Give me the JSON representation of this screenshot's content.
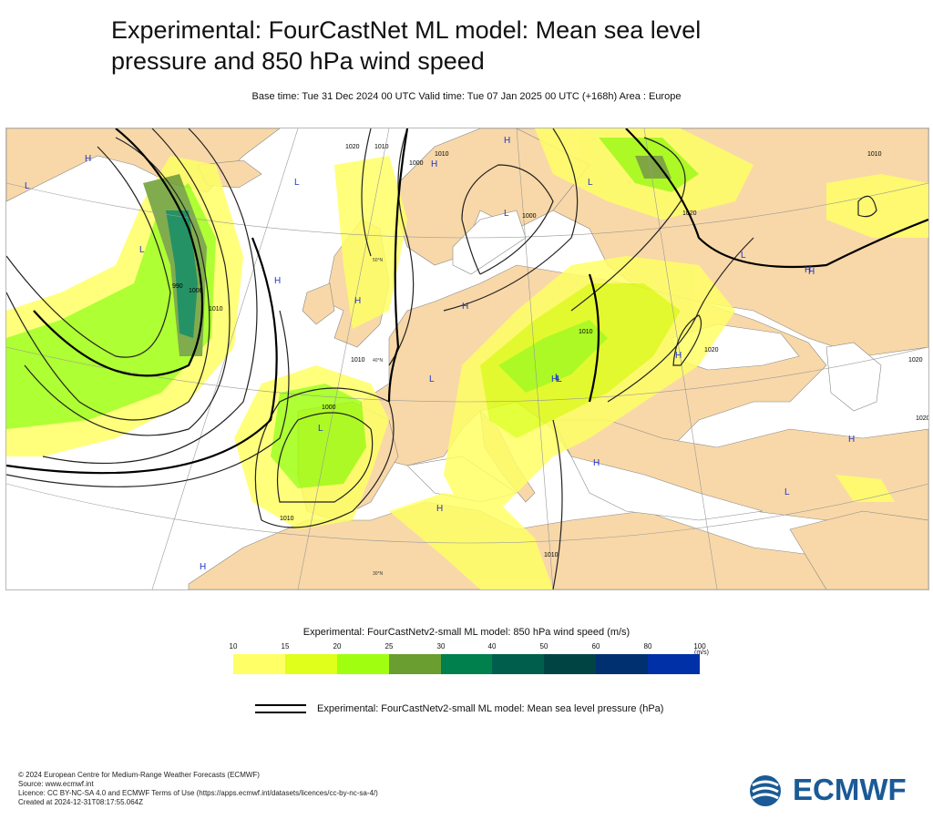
{
  "header": {
    "title_line1": "Experimental: FourCastNet ML model: Mean sea level",
    "title_line2": "pressure and 850 hPa wind speed",
    "subtitle": "Base time: Tue 31 Dec 2024 00 UTC Valid time: Tue 07 Jan 2025 00 UTC (+168h) Area : Europe"
  },
  "map": {
    "land_color": "#f8d8a8",
    "sea_color": "#ffffff",
    "pressure_labels": [
      "1020",
      "1010",
      "1000",
      "990",
      "1000",
      "1010",
      "1010",
      "1000",
      "1010",
      "1020",
      "1010",
      "1020",
      "1010",
      "1020",
      "1020",
      "1010",
      "1000",
      "1010"
    ],
    "graticule_labels": [
      "50°N",
      "40°N",
      "30°N"
    ],
    "centers": [
      "L",
      "H",
      "L",
      "L",
      "L",
      "H",
      "L",
      "H",
      "H",
      "H",
      "L",
      "H",
      "H",
      "L",
      "H",
      "L",
      "H",
      "H",
      "L",
      "H",
      "H",
      "L",
      "L",
      "H",
      "L",
      "H"
    ]
  },
  "wind_legend": {
    "title": "Experimental: FourCastNetv2-small ML model: 850 hPa wind speed (m/s)",
    "ticks": [
      "10",
      "15",
      "20",
      "25",
      "30",
      "40",
      "50",
      "60",
      "80",
      "100"
    ],
    "units": "(m/s)",
    "colors": [
      "#ffff66",
      "#e0ff1a",
      "#a0ff10",
      "#6a9e30",
      "#00804c",
      "#005e4c",
      "#004444",
      "#003070",
      "#0030a8"
    ]
  },
  "pressure_legend": {
    "label": "Experimental: FourCastNetv2-small ML model: Mean sea level pressure (hPa)"
  },
  "footer": {
    "line1": "© 2024 European Centre for Medium-Range Weather Forecasts (ECMWF)",
    "line2": "Source: www.ecmwf.int",
    "line3": "Licence: CC BY-NC-SA 4.0 and ECMWF Terms of Use (https://apps.ecmwf.int/datasets/licences/cc-by-nc-sa-4/)",
    "line4": "Created at 2024-12-31T08:17:55.064Z"
  },
  "logo": {
    "text": "ECMWF",
    "color": "#1a5a96"
  }
}
